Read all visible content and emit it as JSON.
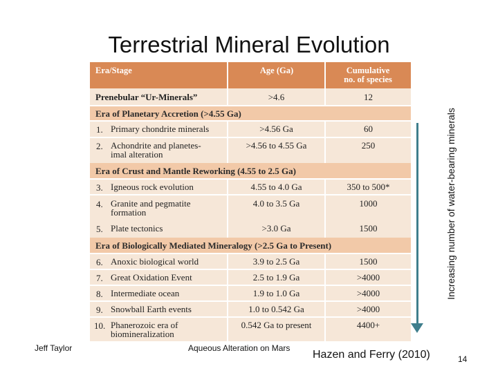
{
  "slide": {
    "title": "Terrestrial Mineral Evolution",
    "rotated_label": "Increasing number of water-bearing minerals",
    "footer_left": "Jeff Taylor",
    "footer_center": "Aqueous Alteration on Mars",
    "citation": "Hazen and Ferry (2010)",
    "page_number": "14",
    "arrow_color": "#3f7e8c"
  },
  "table": {
    "colors": {
      "header": "#d98955",
      "band": "#f2c9a8",
      "body": "#f6e7d8"
    },
    "headers": [
      "Era/Stage",
      "Age (Ga)",
      "Cumulative\nno. of species"
    ],
    "rows": {
      "prenebular": {
        "stage": "Prenebular “Ur-Minerals”",
        "age": ">4.6",
        "species": "12"
      },
      "era1": "Era of Planetary Accretion (>4.55 Ga)",
      "r1": {
        "num": "1.",
        "stage": "Primary chondrite minerals",
        "age": ">4.56 Ga",
        "species": "60"
      },
      "r2": {
        "num": "2.",
        "stage": "Achondrite and planetes-\nimal alteration",
        "age": ">4.56 to 4.55 Ga",
        "species": "250"
      },
      "era2": "Era of Crust and Mantle Reworking (4.55 to 2.5 Ga)",
      "r3": {
        "num": "3.",
        "stage": "Igneous rock evolution",
        "age": "4.55 to 4.0 Ga",
        "species": "350 to 500*"
      },
      "r4": {
        "num": "4.",
        "stage": "Granite and pegmatite\nformation",
        "age": "4.0 to 3.5 Ga",
        "species": "1000"
      },
      "r5": {
        "num": "5.",
        "stage": "Plate tectonics",
        "age": ">3.0 Ga",
        "species": "1500"
      },
      "era3": "Era of Biologically Mediated Mineralogy (>2.5 Ga to Present)",
      "r6": {
        "num": "6.",
        "stage": "Anoxic biological world",
        "age": "3.9 to 2.5 Ga",
        "species": "1500"
      },
      "r7": {
        "num": "7.",
        "stage": "Great Oxidation Event",
        "age": "2.5 to 1.9 Ga",
        "species": ">4000"
      },
      "r8": {
        "num": "8.",
        "stage": "Intermediate ocean",
        "age": "1.9 to 1.0 Ga",
        "species": ">4000"
      },
      "r9": {
        "num": "9.",
        "stage": "Snowball Earth events",
        "age": "1.0 to 0.542 Ga",
        "species": ">4000"
      },
      "r10": {
        "num": "10.",
        "stage": "Phanerozoic era of\nbiomineralization",
        "age": "0.542 Ga to present",
        "species": "4400+"
      }
    }
  }
}
